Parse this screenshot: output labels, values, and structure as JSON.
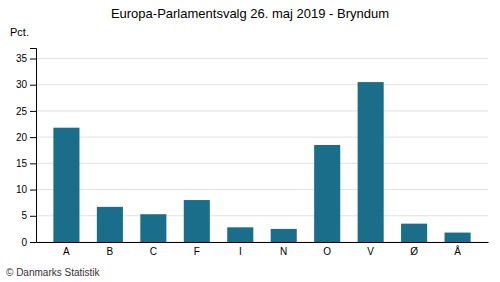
{
  "chart_data": {
    "type": "bar",
    "title": "Europa-Parlamentsvalg 26. maj 2019 - Bryndum",
    "categories": [
      "A",
      "B",
      "C",
      "F",
      "I",
      "N",
      "O",
      "V",
      "Ø",
      "Å"
    ],
    "values": [
      21.8,
      6.7,
      5.3,
      8.0,
      2.8,
      2.5,
      18.5,
      30.5,
      3.5,
      1.8
    ],
    "color": "#1a6e8a",
    "ylabel": "Pct.",
    "ylim": [
      0,
      37
    ],
    "yticks": [
      0,
      5,
      10,
      15,
      20,
      25,
      30,
      35
    ],
    "grid": true,
    "annotations": [
      "© Danmarks Statistik"
    ]
  }
}
